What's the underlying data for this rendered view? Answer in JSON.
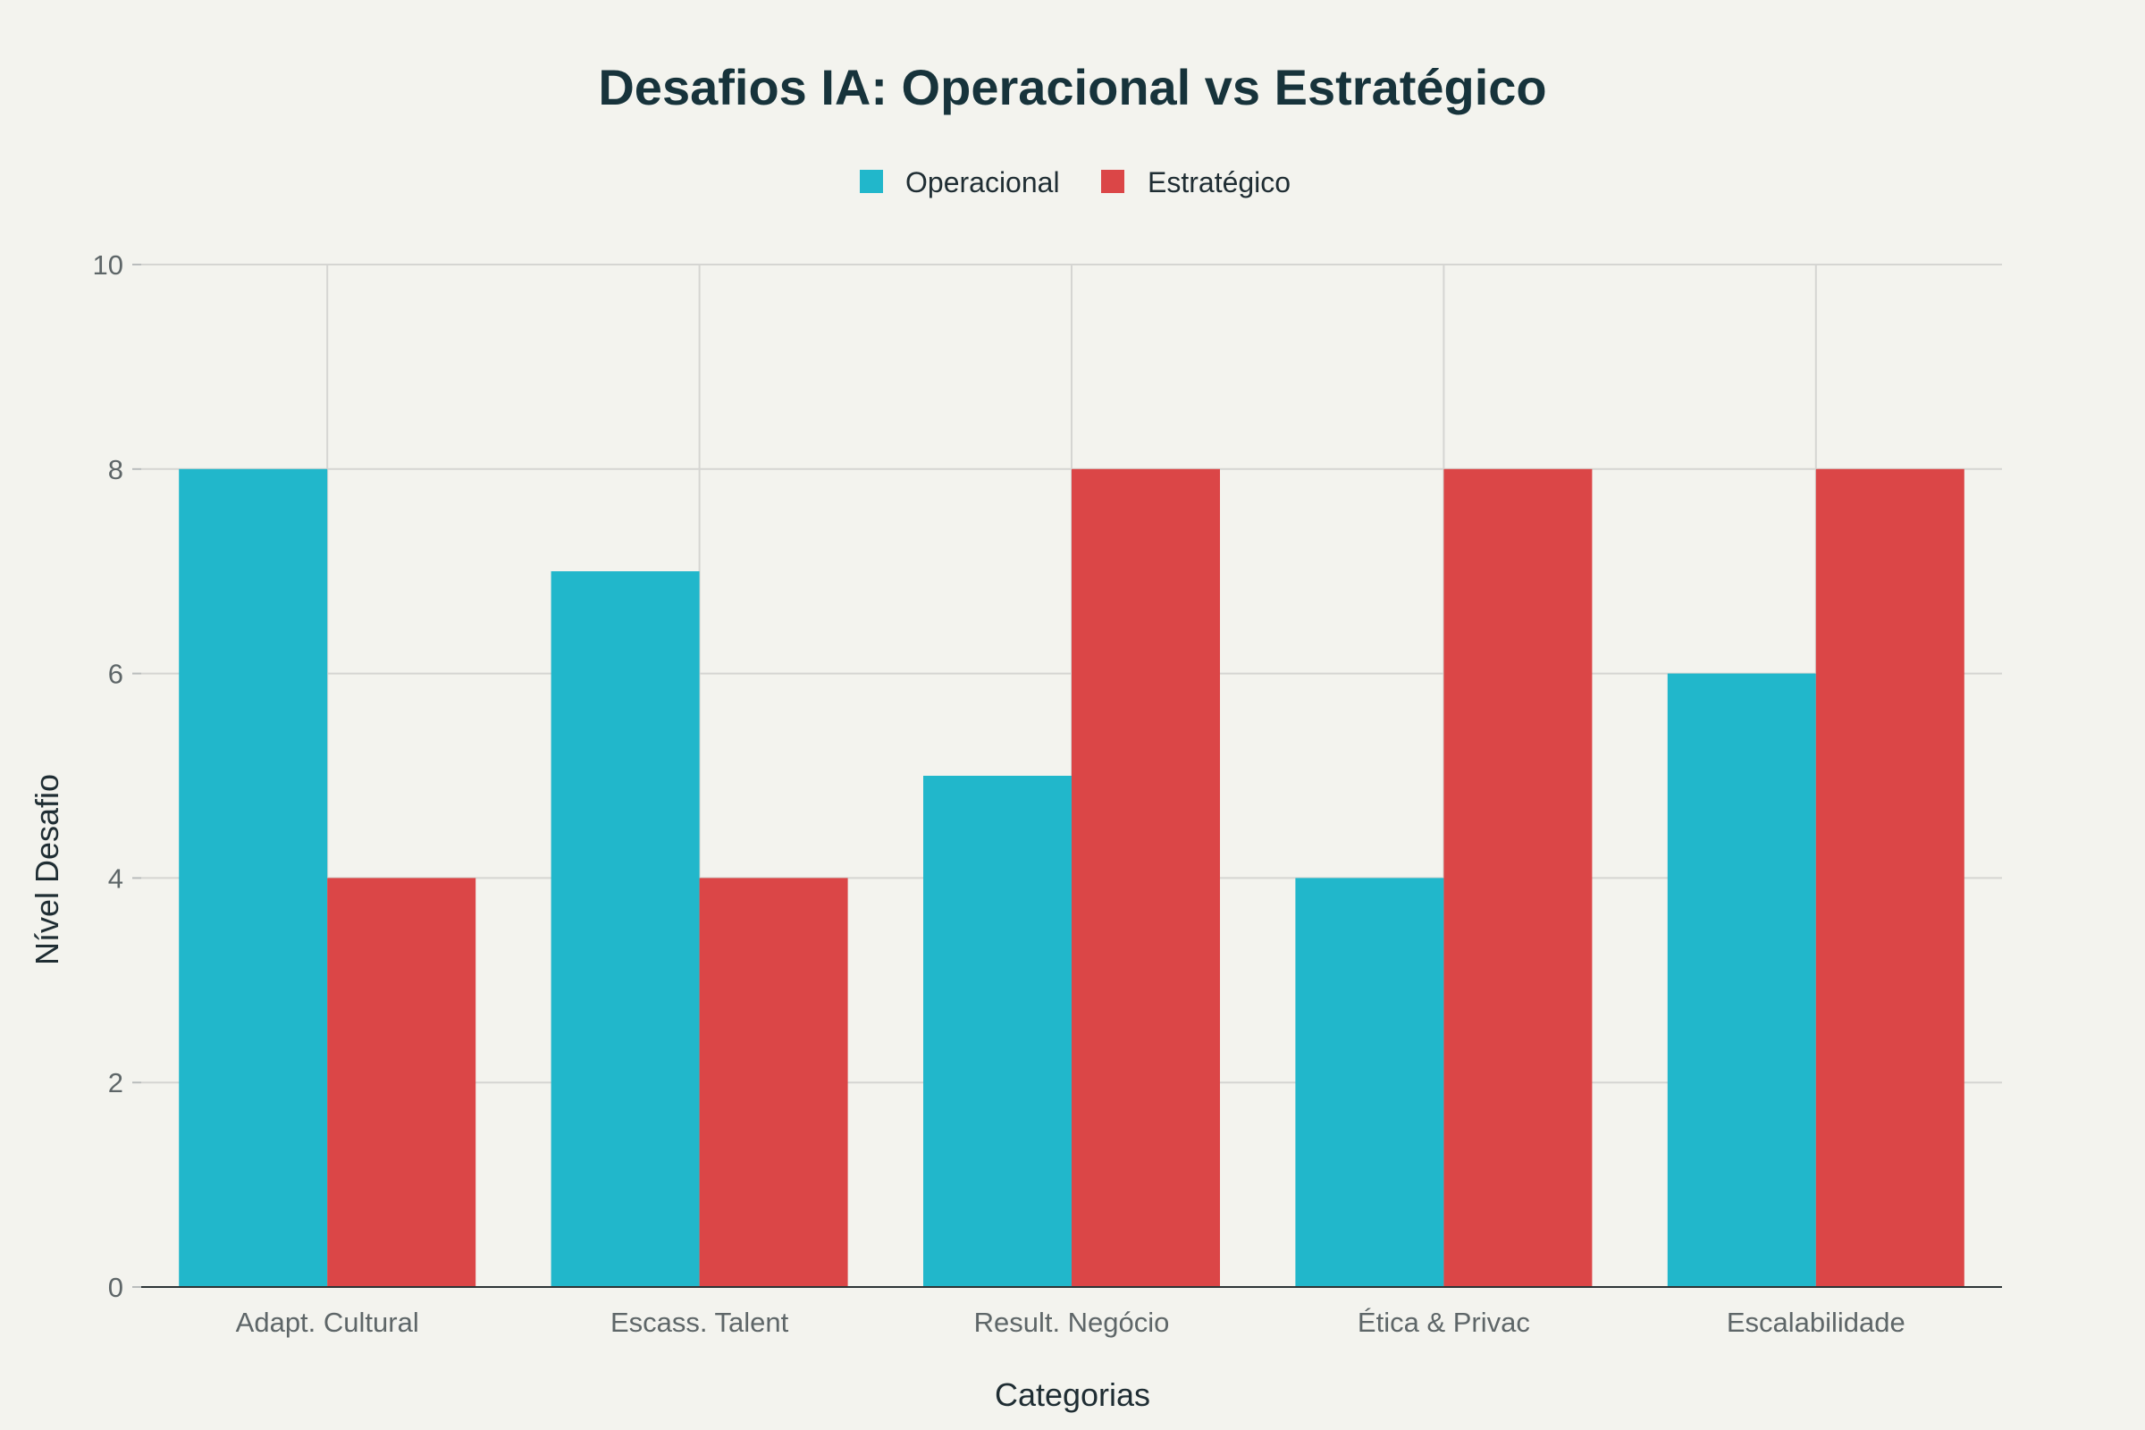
{
  "chart_data": {
    "type": "bar",
    "title": "Desafios IA: Operacional vs Estratégico",
    "xlabel": "Categorias",
    "ylabel": "Nível Desafio",
    "categories": [
      "Adapt. Cultural",
      "Escass. Talent",
      "Result. Negócio",
      "Ética & Privac",
      "Escalabilidade"
    ],
    "series": [
      {
        "name": "Operacional",
        "color": "#21b7cb",
        "values": [
          8,
          7,
          5,
          4,
          6
        ]
      },
      {
        "name": "Estratégico",
        "color": "#db4647",
        "values": [
          4,
          4,
          8,
          8,
          8
        ]
      }
    ],
    "ylim": [
      0,
      10
    ],
    "yticks": [
      "0",
      "2",
      "4",
      "6",
      "8",
      "10"
    ],
    "grid": true,
    "legend_position": "top-center"
  }
}
